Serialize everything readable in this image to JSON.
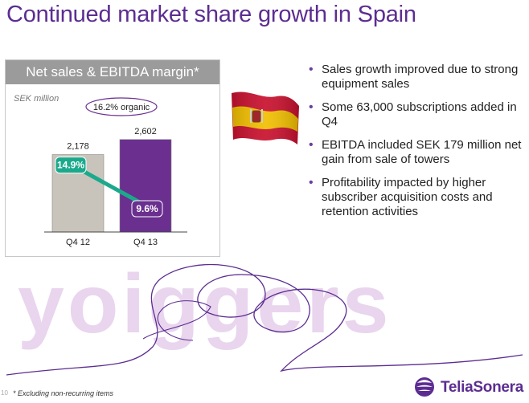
{
  "slide": {
    "title": "Continued market share growth in Spain",
    "page_number": "10",
    "footnote": "* Excluding non-recurring items",
    "brand": "TeliaSonera",
    "watermark_text": "yoiggers"
  },
  "bullets": [
    "Sales growth improved due to strong equipment sales",
    "Some 63,000 subscriptions added in Q4",
    "EBITDA included SEK 179 million net gain from sale of towers",
    "Profitability impacted by higher subscriber acquisition costs and retention activities"
  ],
  "colors": {
    "accent": "#5c2d91",
    "bar_q4_12": "#c9c4bb",
    "bar_q4_13": "#6a2f8f",
    "margin_line": "#1ba98c",
    "header_gray": "#9b9b9b",
    "watermark": "#e9d5ee"
  },
  "chart_data": {
    "type": "bar",
    "title": "Net sales & EBITDA margin*",
    "unit_label": "SEK million",
    "categories": [
      "Q4 12",
      "Q4 13"
    ],
    "series": [
      {
        "name": "Net sales",
        "values": [
          2178,
          2602
        ]
      },
      {
        "name": "EBITDA margin",
        "type": "line",
        "values": [
          14.9,
          9.6
        ],
        "labels": [
          "14.9%",
          "9.6%"
        ]
      }
    ],
    "value_labels": [
      "2,178",
      "2,602"
    ],
    "annotation": "16.2% organic",
    "legend": "none",
    "grid": false
  }
}
